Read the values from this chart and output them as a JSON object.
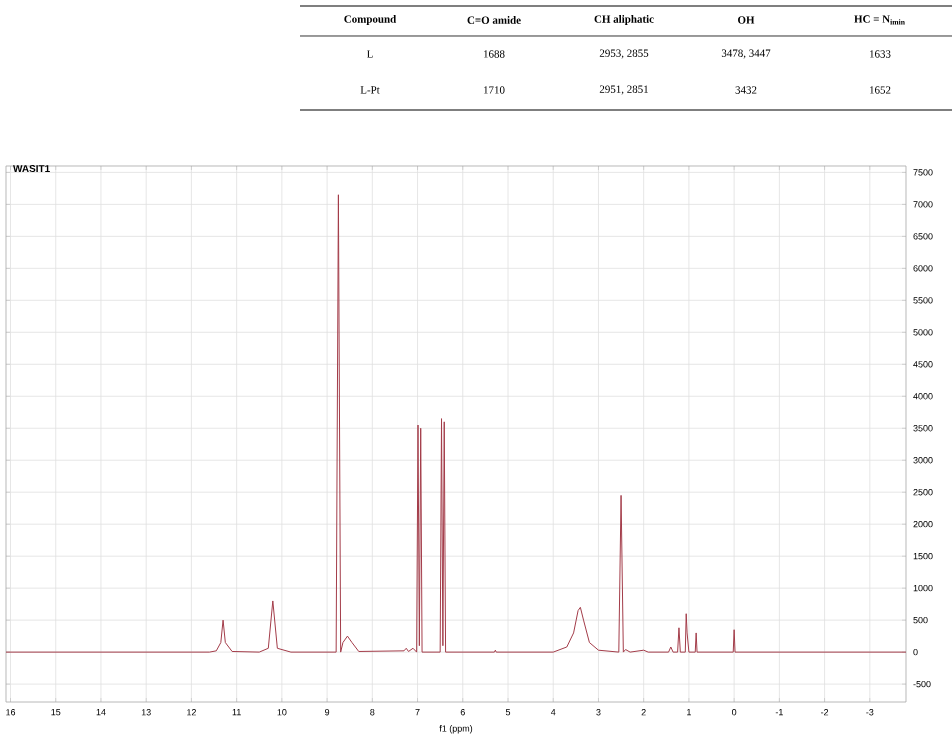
{
  "chart_data": [
    {
      "type": "other",
      "annotations": [
        "Compound",
        "C=O amide",
        "CH aliphatic",
        "OH",
        "HC = N$_{imin}$",
        "L",
        "1688",
        "2953, 2855",
        "3478, 3447",
        "1633",
        "L-Pt",
        "1710",
        "2951, 2851",
        "3432",
        "1652"
      ]
    },
    {
      "type": "line",
      "xlabel": "f1 (ppm)",
      "annotations": [
        "WASIT1"
      ],
      "color": "#a33b48",
      "grid": true,
      "marker": "none",
      "xlim": [
        16.1,
        -3.8
      ],
      "ylim": [
        -780,
        7600
      ],
      "xticks": [
        16,
        15,
        14,
        13,
        12,
        11,
        10,
        9,
        8,
        7,
        6,
        5,
        4,
        3,
        2,
        1,
        0,
        -1,
        -2,
        -3
      ],
      "yticks": [
        -500,
        0,
        500,
        1000,
        1500,
        2000,
        2500,
        3000,
        3500,
        4000,
        4500,
        5000,
        5500,
        6000,
        6500,
        7000,
        7500
      ],
      "x": [
        16.1,
        11.6,
        11.45,
        11.35,
        11.3,
        11.25,
        11.1,
        10.5,
        10.3,
        10.2,
        10.1,
        9.8,
        8.8,
        8.75,
        8.7,
        8.65,
        8.55,
        8.45,
        8.3,
        7.3,
        7.25,
        7.2,
        7.1,
        7.02,
        6.99,
        6.96,
        6.93,
        6.9,
        6.5,
        6.47,
        6.44,
        6.41,
        6.38,
        5.3,
        5.28,
        5.26,
        4.0,
        3.7,
        3.55,
        3.45,
        3.4,
        3.33,
        3.2,
        3.0,
        2.55,
        2.5,
        2.45,
        2.4,
        2.3,
        2.0,
        1.9,
        1.45,
        1.4,
        1.35,
        1.25,
        1.22,
        1.19,
        1.08,
        1.06,
        1.04,
        1.0,
        0.86,
        0.84,
        0.82,
        0.02,
        0.0,
        -0.02,
        -3.8
      ],
      "values": [
        0,
        0,
        20,
        150,
        500,
        150,
        10,
        0,
        60,
        800,
        60,
        0,
        0,
        7150,
        0,
        150,
        250,
        150,
        10,
        20,
        60,
        10,
        60,
        0,
        3550,
        100,
        3500,
        0,
        0,
        3650,
        100,
        3600,
        0,
        0,
        30,
        0,
        0,
        80,
        300,
        650,
        700,
        500,
        150,
        30,
        0,
        2450,
        0,
        40,
        0,
        30,
        0,
        0,
        80,
        0,
        0,
        380,
        0,
        0,
        600,
        300,
        0,
        0,
        300,
        0,
        0,
        350,
        0,
        0
      ]
    }
  ]
}
